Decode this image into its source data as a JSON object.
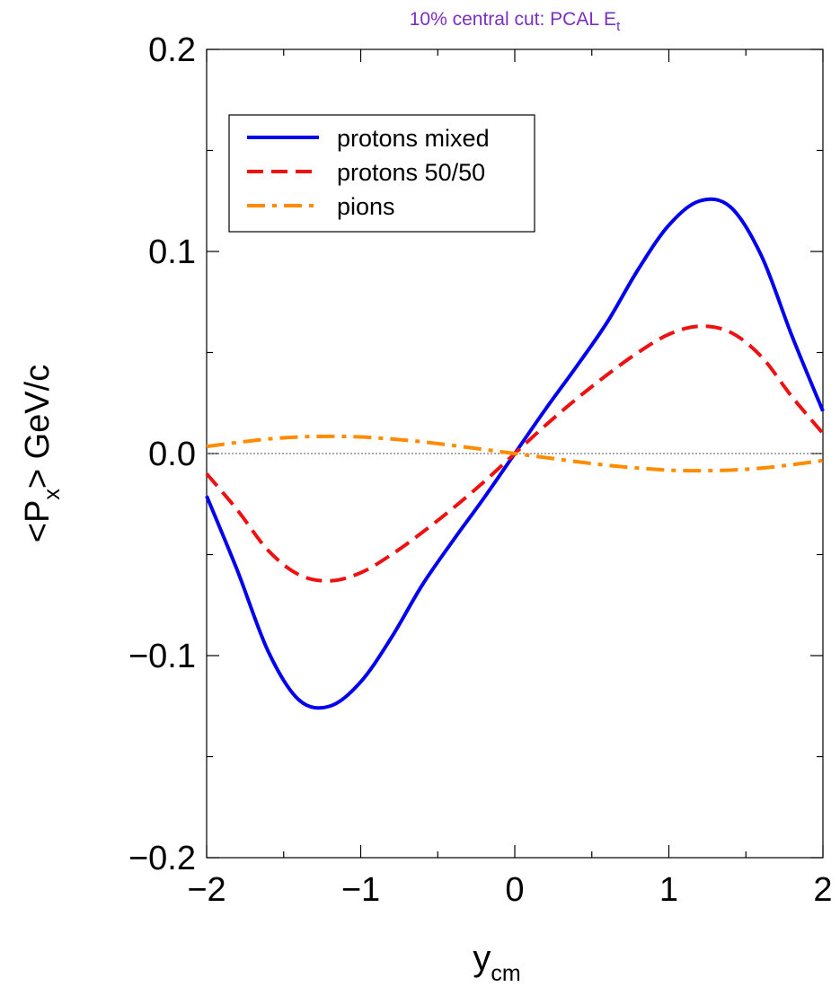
{
  "chart_data": {
    "type": "line",
    "title": "10% central cut: PCAL E",
    "title_subscript": "t",
    "title_color": "#7b2fbe",
    "xlabel": "y",
    "xlabel_subscript": "cm",
    "ylabel_parts": {
      "open": "<P",
      "subscript": "x",
      "close": "> GeV/c"
    },
    "xlim": [
      -2,
      2
    ],
    "ylim": [
      -0.2,
      0.2
    ],
    "xticks": [
      -2,
      -1,
      0,
      1,
      2
    ],
    "xtick_labels": [
      "−2",
      "−1",
      "0",
      "1",
      "2"
    ],
    "xticks_minor": [
      -1.5,
      -0.5,
      0.5,
      1.5
    ],
    "yticks": [
      -0.2,
      -0.1,
      0.0,
      0.1,
      0.2
    ],
    "ytick_labels": [
      "−0.2",
      "−0.1",
      "0.0",
      "0.1",
      "0.2"
    ],
    "yticks_minor": [
      -0.15,
      -0.05,
      0.05,
      0.15
    ],
    "reference_line_y": 0,
    "legend_position": "top-left",
    "grid": false,
    "series": [
      {
        "name": "protons mixed",
        "color": "#0000ee",
        "dash": "solid",
        "x": [
          -2.0,
          -1.8,
          -1.6,
          -1.4,
          -1.2,
          -1.0,
          -0.8,
          -0.6,
          -0.4,
          -0.2,
          0.0,
          0.2,
          0.4,
          0.6,
          0.8,
          1.0,
          1.2,
          1.4,
          1.6,
          1.8,
          2.0
        ],
        "y": [
          -0.021,
          -0.058,
          -0.098,
          -0.122,
          -0.125,
          -0.113,
          -0.091,
          -0.065,
          -0.043,
          -0.022,
          0.0,
          0.022,
          0.043,
          0.065,
          0.091,
          0.113,
          0.125,
          0.122,
          0.098,
          0.058,
          0.021
        ]
      },
      {
        "name": "protons 50/50",
        "color": "#ee1111",
        "dash": "dashed",
        "x": [
          -2.0,
          -1.8,
          -1.6,
          -1.4,
          -1.2,
          -1.0,
          -0.8,
          -0.6,
          -0.4,
          -0.2,
          0.0,
          0.2,
          0.4,
          0.6,
          0.8,
          1.0,
          1.2,
          1.4,
          1.6,
          1.8,
          2.0
        ],
        "y": [
          -0.01,
          -0.028,
          -0.048,
          -0.06,
          -0.063,
          -0.059,
          -0.05,
          -0.039,
          -0.027,
          -0.014,
          0.0,
          0.014,
          0.027,
          0.039,
          0.05,
          0.059,
          0.063,
          0.06,
          0.048,
          0.028,
          0.01
        ]
      },
      {
        "name": "pions",
        "color": "#ff8c00",
        "dash": "dashdot",
        "x": [
          -2.0,
          -1.8,
          -1.6,
          -1.4,
          -1.2,
          -1.0,
          -0.8,
          -0.6,
          -0.4,
          -0.2,
          0.0,
          0.2,
          0.4,
          0.6,
          0.8,
          1.0,
          1.2,
          1.4,
          1.6,
          1.8,
          2.0
        ],
        "y": [
          0.0035,
          0.0055,
          0.0072,
          0.0082,
          0.0085,
          0.0082,
          0.0072,
          0.0058,
          0.004,
          0.002,
          0.0,
          -0.002,
          -0.004,
          -0.0058,
          -0.0072,
          -0.0082,
          -0.0085,
          -0.0082,
          -0.0072,
          -0.0055,
          -0.0035
        ]
      }
    ]
  }
}
